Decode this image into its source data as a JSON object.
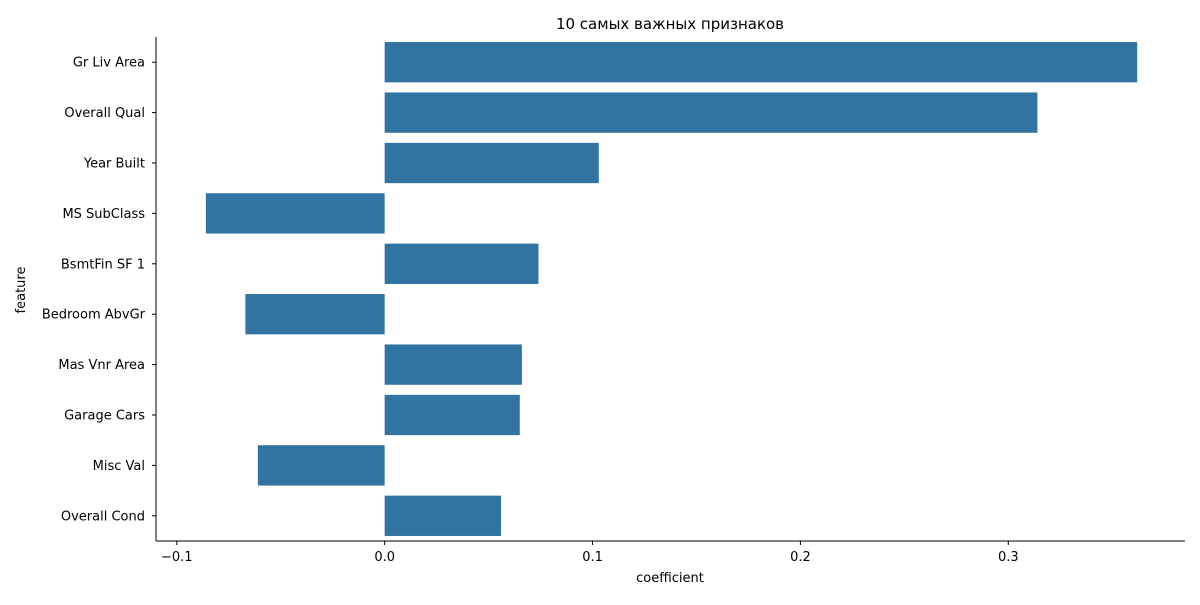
{
  "chart_data": {
    "type": "bar",
    "orientation": "horizontal",
    "title": "10 самых важных признаков",
    "xlabel": "coefficient",
    "ylabel": "feature",
    "categories": [
      "Gr Liv Area",
      "Overall Qual",
      "Year Built",
      "MS SubClass",
      "BsmtFin SF 1",
      "Bedroom AbvGr",
      "Mas Vnr Area",
      "Garage Cars",
      "Misc Val",
      "Overall Cond"
    ],
    "values": [
      0.362,
      0.314,
      0.103,
      -0.086,
      0.074,
      -0.067,
      0.066,
      0.065,
      -0.061,
      0.056
    ],
    "xlim": [
      -0.11,
      0.385
    ],
    "xticks": [
      -0.1,
      0.0,
      0.1,
      0.2,
      0.3
    ],
    "xtick_labels": [
      "−0.1",
      "0.0",
      "0.1",
      "0.2",
      "0.3"
    ],
    "grid": false,
    "bar_color": "#3274a1"
  }
}
